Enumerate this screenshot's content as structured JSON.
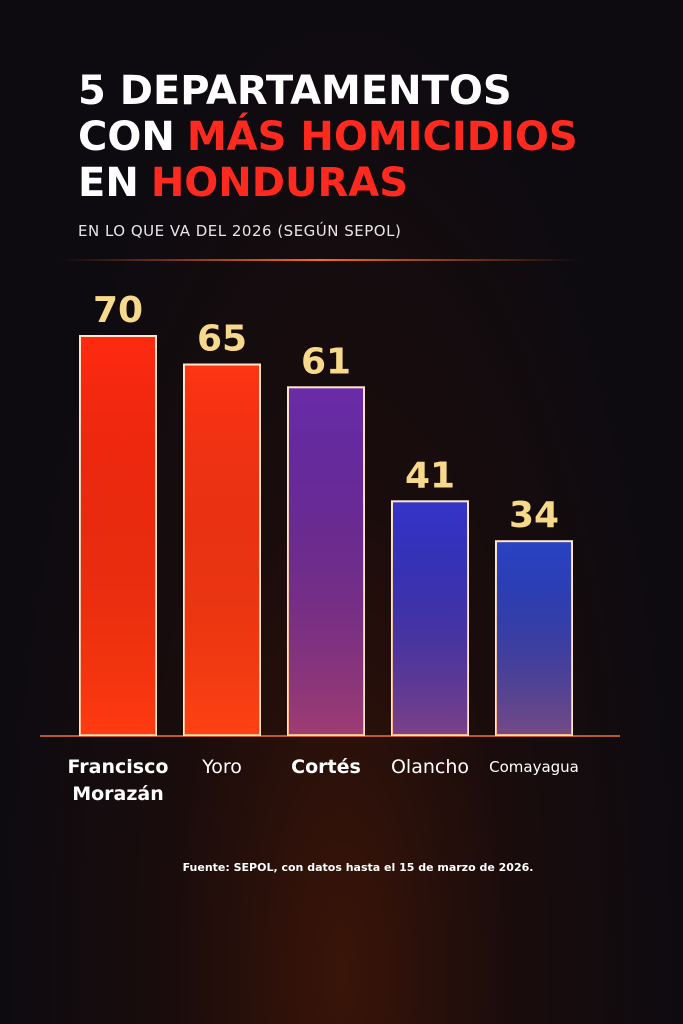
{
  "chart_data": {
    "type": "bar",
    "title": [
      [
        "5 DEPARTAMENTOS"
      ],
      [
        "CON",
        "MÁS HOMICIDIOS"
      ],
      [
        "EN",
        "HONDURAS"
      ]
    ],
    "title_color": "#ffffff",
    "highlight_color": "#ff2a1f",
    "subtitle": "EN LO QUE VA DEL 2026 (SEGÚN SEPOL)",
    "categories": [
      "Francisco Morazán",
      "Yoro",
      "Cortés",
      "Olancho",
      "Comayagua"
    ],
    "values": [
      70,
      65,
      61,
      41,
      34
    ],
    "colors": [
      "#ff2a10",
      "#ff3414",
      "#6a2ca8",
      "#3534c8",
      "#2b42c4"
    ],
    "value_label_color": "#f6d98a",
    "ylim": [
      0,
      70
    ],
    "source": "Fuente: SEPOL, con datos hasta el 15 de marzo de 2026."
  }
}
